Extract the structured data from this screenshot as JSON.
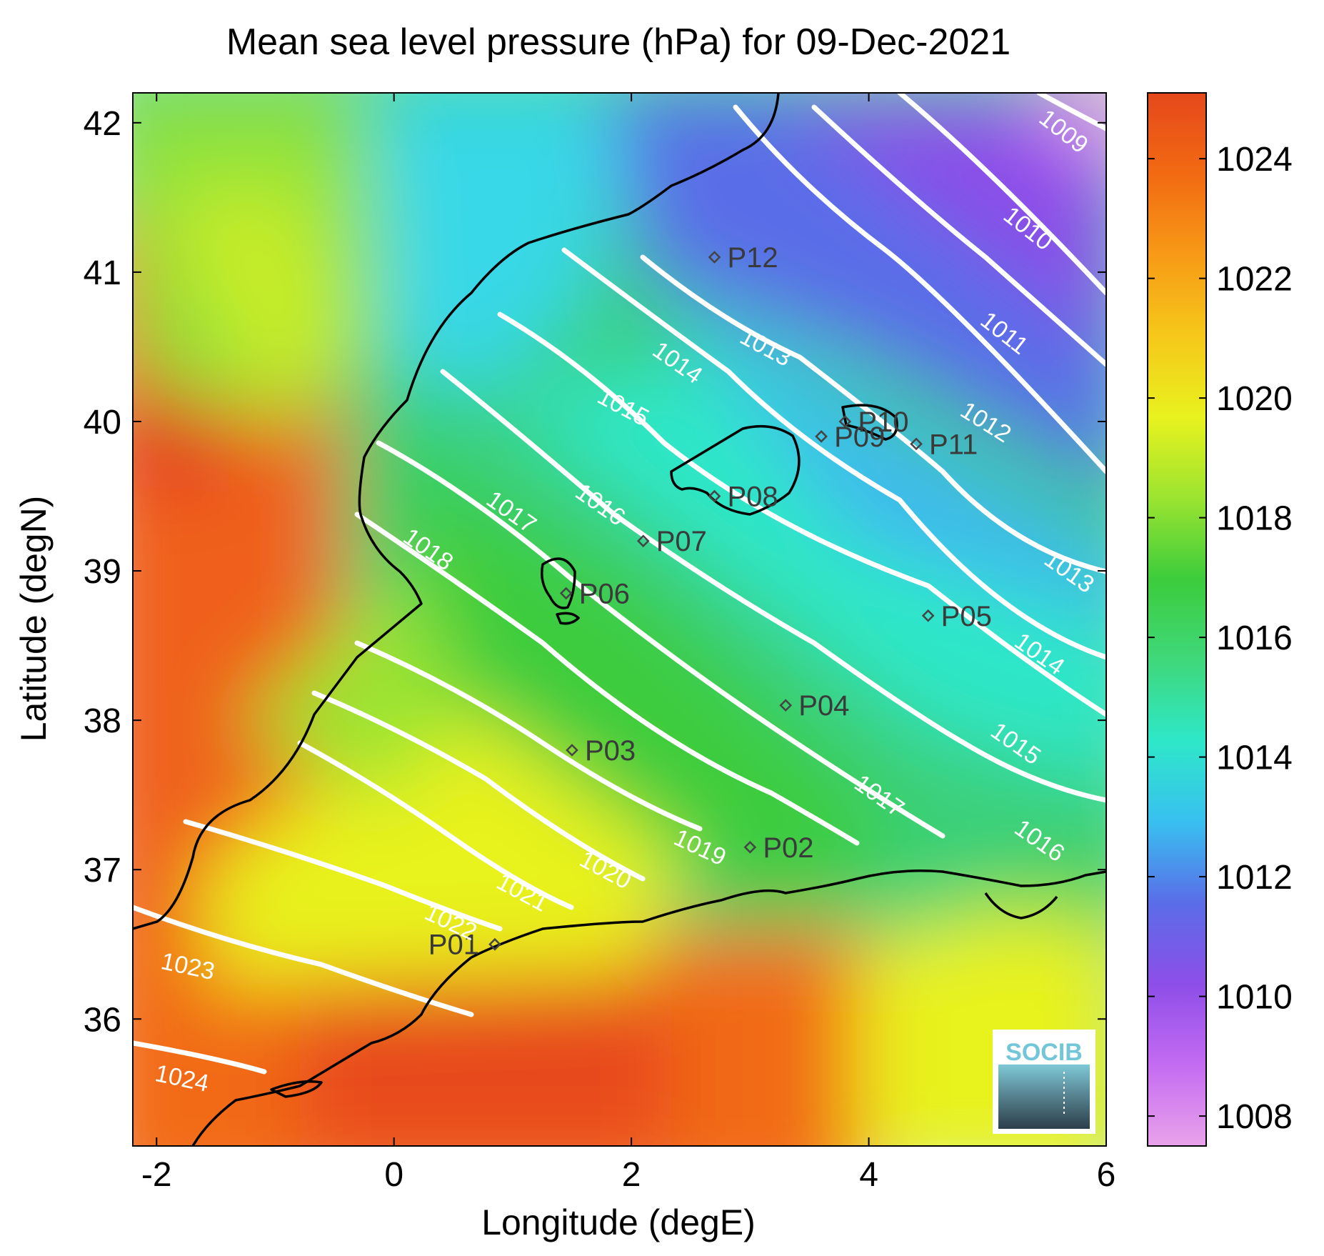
{
  "title": "Mean sea level pressure (hPa) for 09-Dec-2021",
  "xlabel": "Longitude (degE)",
  "ylabel": "Latitude (degN)",
  "chart_data": {
    "type": "heatmap",
    "xlim": [
      -2.2,
      6.0
    ],
    "ylim": [
      35.15,
      42.2
    ],
    "xticks": [
      -2,
      0,
      2,
      4,
      6
    ],
    "xtick_labels": [
      "-2",
      "0",
      "2",
      "4",
      "6"
    ],
    "yticks": [
      36,
      37,
      38,
      39,
      40,
      41,
      42
    ],
    "ytick_labels": [
      "36",
      "37",
      "38",
      "39",
      "40",
      "41",
      "42"
    ],
    "colorbar": {
      "range": [
        1007.5,
        1025.1
      ],
      "ticks": [
        1008,
        1010,
        1012,
        1014,
        1016,
        1018,
        1020,
        1022,
        1024
      ],
      "tick_labels": [
        "1008",
        "1010",
        "1012",
        "1014",
        "1016",
        "1018",
        "1020",
        "1022",
        "1024"
      ],
      "colors": [
        "#e9a3ea",
        "#c46bf2",
        "#8d4ee8",
        "#5a6de8",
        "#38c0f0",
        "#2ee7c8",
        "#3fd87a",
        "#3ccc3c",
        "#9be430",
        "#e8f21e",
        "#f6c81a",
        "#f79a16",
        "#f26a12",
        "#e5481b"
      ]
    },
    "stations": [
      {
        "label": "P01",
        "lon": 0.85,
        "lat": 36.5
      },
      {
        "label": "P02",
        "lon": 3.0,
        "lat": 37.15
      },
      {
        "label": "P03",
        "lon": 1.5,
        "lat": 37.8
      },
      {
        "label": "P04",
        "lon": 3.3,
        "lat": 38.1
      },
      {
        "label": "P05",
        "lon": 4.5,
        "lat": 38.7
      },
      {
        "label": "P06",
        "lon": 1.45,
        "lat": 38.85
      },
      {
        "label": "P07",
        "lon": 2.1,
        "lat": 39.2
      },
      {
        "label": "P08",
        "lon": 2.7,
        "lat": 39.5
      },
      {
        "label": "P09",
        "lon": 3.6,
        "lat": 39.9
      },
      {
        "label": "P10",
        "lon": 3.8,
        "lat": 40.0
      },
      {
        "label": "P11",
        "lon": 4.4,
        "lat": 39.85
      },
      {
        "label": "P12",
        "lon": 2.7,
        "lat": 41.1
      }
    ],
    "contour_labels": [
      {
        "text": "1009",
        "lon": 5.6,
        "lat": 41.9,
        "angle": 38
      },
      {
        "text": "1010",
        "lon": 5.3,
        "lat": 41.25,
        "angle": 38
      },
      {
        "text": "1011",
        "lon": 5.1,
        "lat": 40.55,
        "angle": 38
      },
      {
        "text": "1012",
        "lon": 4.95,
        "lat": 39.95,
        "angle": 32
      },
      {
        "text": "1013",
        "lon": 5.65,
        "lat": 38.95,
        "angle": 35
      },
      {
        "text": "1014",
        "lon": 5.4,
        "lat": 38.4,
        "angle": 35
      },
      {
        "text": "1015",
        "lon": 5.2,
        "lat": 37.8,
        "angle": 35
      },
      {
        "text": "1016",
        "lon": 5.4,
        "lat": 37.15,
        "angle": 35
      },
      {
        "text": "1017",
        "lon": 4.05,
        "lat": 37.45,
        "angle": 35
      },
      {
        "text": "1019",
        "lon": 2.55,
        "lat": 37.1,
        "angle": 25
      },
      {
        "text": "1020",
        "lon": 1.75,
        "lat": 36.95,
        "angle": 28
      },
      {
        "text": "1021",
        "lon": 1.05,
        "lat": 36.8,
        "angle": 28
      },
      {
        "text": "1022",
        "lon": 0.45,
        "lat": 36.6,
        "angle": 25
      },
      {
        "text": "1023",
        "lon": -1.75,
        "lat": 36.3,
        "angle": 12
      },
      {
        "text": "1024",
        "lon": -1.8,
        "lat": 35.55,
        "angle": 12
      },
      {
        "text": "1018",
        "lon": 0.25,
        "lat": 39.1,
        "angle": 35
      },
      {
        "text": "1017",
        "lon": 0.95,
        "lat": 39.35,
        "angle": 35
      },
      {
        "text": "1016",
        "lon": 1.7,
        "lat": 39.4,
        "angle": 35
      },
      {
        "text": "1015",
        "lon": 1.9,
        "lat": 40.05,
        "angle": 28
      },
      {
        "text": "1014",
        "lon": 2.35,
        "lat": 40.35,
        "angle": 35
      },
      {
        "text": "1013",
        "lon": 3.1,
        "lat": 40.45,
        "angle": 28
      }
    ]
  },
  "logo": {
    "text": "SOCIB"
  }
}
